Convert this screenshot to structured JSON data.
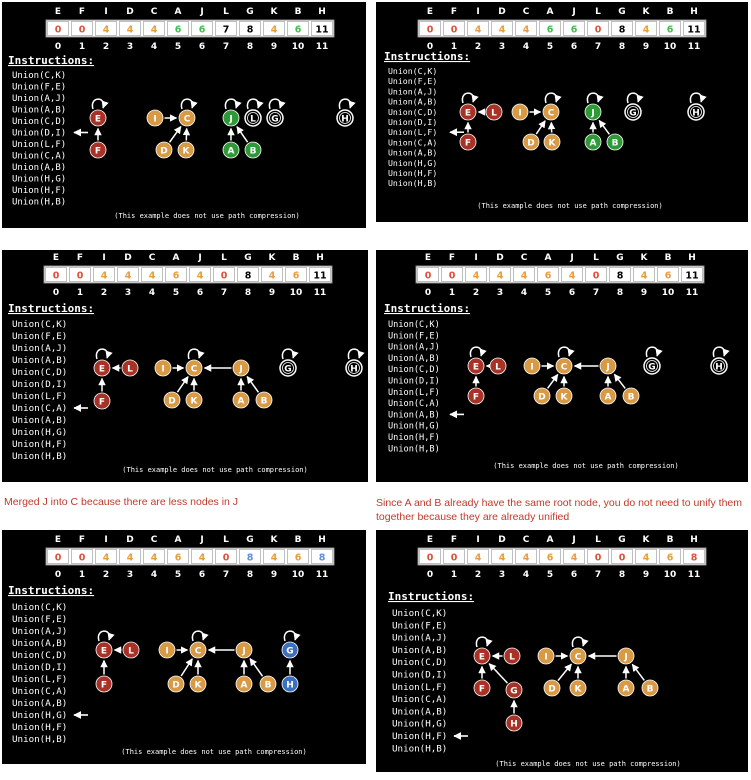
{
  "letters": [
    "E",
    "F",
    "I",
    "D",
    "C",
    "A",
    "J",
    "L",
    "G",
    "K",
    "B",
    "H"
  ],
  "indices": [
    "0",
    "1",
    "2",
    "3",
    "4",
    "5",
    "6",
    "7",
    "8",
    "9",
    "10",
    "11"
  ],
  "instructions_title": "Instructions:",
  "instructions": [
    "Union(C,K)",
    "Union(F,E)",
    "Union(A,J)",
    "Union(A,B)",
    "Union(C,D)",
    "Union(D,I)",
    "Union(L,F)",
    "Union(C,A)",
    "Union(A,B)",
    "Union(H,G)",
    "Union(H,F)",
    "Union(H,B)"
  ],
  "footer_note": "(This example does not use path compression)",
  "colors": {
    "red": "#a83226",
    "orange": "#d99a45",
    "green": "#2e9a37",
    "blue": "#3b6fc0",
    "background": "#000000",
    "text": "#ffffff",
    "val_red": "#e0503c",
    "val_orange": "#e89b3c",
    "val_green": "#3fbf4a",
    "val_blue": "#5b8ee6",
    "val_default": "#000000"
  },
  "panels": [
    {
      "values": [
        "0",
        "0",
        "4",
        "4",
        "4",
        "6",
        "6",
        "7",
        "8",
        "4",
        "6",
        "11"
      ],
      "value_colors": [
        "red",
        "red",
        "orange",
        "orange",
        "orange",
        "green",
        "green",
        "default",
        "default",
        "orange",
        "green",
        "default"
      ],
      "arrow_at": 5,
      "caption": "",
      "nodes": [
        {
          "label": "E",
          "color": "red"
        },
        {
          "label": "F",
          "color": "red"
        },
        {
          "label": "I",
          "color": "orange"
        },
        {
          "label": "C",
          "color": "orange"
        },
        {
          "label": "D",
          "color": "orange"
        },
        {
          "label": "K",
          "color": "orange"
        },
        {
          "label": "J",
          "color": "green"
        },
        {
          "label": "L",
          "color": "none"
        },
        {
          "label": "G",
          "color": "none"
        },
        {
          "label": "A",
          "color": "green"
        },
        {
          "label": "B",
          "color": "green"
        },
        {
          "label": "H",
          "color": "none"
        }
      ]
    },
    {
      "values": [
        "0",
        "0",
        "4",
        "4",
        "4",
        "6",
        "6",
        "0",
        "8",
        "4",
        "6",
        "11"
      ],
      "value_colors": [
        "red",
        "red",
        "orange",
        "orange",
        "orange",
        "green",
        "green",
        "red",
        "default",
        "orange",
        "green",
        "default"
      ],
      "arrow_at": 6,
      "caption": "",
      "nodes": [
        {
          "label": "E",
          "color": "red"
        },
        {
          "label": "L",
          "color": "red"
        },
        {
          "label": "F",
          "color": "red"
        },
        {
          "label": "I",
          "color": "orange"
        },
        {
          "label": "C",
          "color": "orange"
        },
        {
          "label": "D",
          "color": "orange"
        },
        {
          "label": "K",
          "color": "orange"
        },
        {
          "label": "J",
          "color": "green"
        },
        {
          "label": "A",
          "color": "green"
        },
        {
          "label": "B",
          "color": "green"
        },
        {
          "label": "G",
          "color": "none"
        },
        {
          "label": "H",
          "color": "none"
        }
      ]
    },
    {
      "values": [
        "0",
        "0",
        "4",
        "4",
        "4",
        "6",
        "4",
        "0",
        "8",
        "4",
        "6",
        "11"
      ],
      "value_colors": [
        "red",
        "red",
        "orange",
        "orange",
        "orange",
        "orange",
        "orange",
        "red",
        "default",
        "orange",
        "orange",
        "default"
      ],
      "arrow_at": 7,
      "caption": "Merged J into C because there are less nodes in J",
      "nodes": [
        {
          "label": "E",
          "color": "red"
        },
        {
          "label": "L",
          "color": "red"
        },
        {
          "label": "F",
          "color": "red"
        },
        {
          "label": "I",
          "color": "orange"
        },
        {
          "label": "C",
          "color": "orange"
        },
        {
          "label": "D",
          "color": "orange"
        },
        {
          "label": "K",
          "color": "orange"
        },
        {
          "label": "J",
          "color": "orange"
        },
        {
          "label": "A",
          "color": "orange"
        },
        {
          "label": "B",
          "color": "orange"
        },
        {
          "label": "G",
          "color": "none"
        },
        {
          "label": "H",
          "color": "none"
        }
      ]
    },
    {
      "values": [
        "0",
        "0",
        "4",
        "4",
        "4",
        "6",
        "4",
        "0",
        "8",
        "4",
        "6",
        "11"
      ],
      "value_colors": [
        "red",
        "red",
        "orange",
        "orange",
        "orange",
        "orange",
        "orange",
        "red",
        "default",
        "orange",
        "orange",
        "default"
      ],
      "arrow_at": 8,
      "caption": "Since A and B already have the same root node, you do not need to unify them together because they are already unified",
      "nodes": [
        {
          "label": "E",
          "color": "red"
        },
        {
          "label": "L",
          "color": "red"
        },
        {
          "label": "F",
          "color": "red"
        },
        {
          "label": "I",
          "color": "orange"
        },
        {
          "label": "C",
          "color": "orange"
        },
        {
          "label": "D",
          "color": "orange"
        },
        {
          "label": "K",
          "color": "orange"
        },
        {
          "label": "J",
          "color": "orange"
        },
        {
          "label": "A",
          "color": "orange"
        },
        {
          "label": "B",
          "color": "orange"
        },
        {
          "label": "G",
          "color": "none"
        },
        {
          "label": "H",
          "color": "none"
        }
      ]
    },
    {
      "values": [
        "0",
        "0",
        "4",
        "4",
        "4",
        "6",
        "4",
        "0",
        "8",
        "4",
        "6",
        "8"
      ],
      "value_colors": [
        "red",
        "red",
        "orange",
        "orange",
        "orange",
        "orange",
        "orange",
        "red",
        "blue",
        "orange",
        "orange",
        "blue"
      ],
      "arrow_at": 9,
      "caption": "",
      "nodes": [
        {
          "label": "E",
          "color": "red"
        },
        {
          "label": "L",
          "color": "red"
        },
        {
          "label": "F",
          "color": "red"
        },
        {
          "label": "I",
          "color": "orange"
        },
        {
          "label": "C",
          "color": "orange"
        },
        {
          "label": "D",
          "color": "orange"
        },
        {
          "label": "K",
          "color": "orange"
        },
        {
          "label": "J",
          "color": "orange"
        },
        {
          "label": "A",
          "color": "orange"
        },
        {
          "label": "B",
          "color": "orange"
        },
        {
          "label": "G",
          "color": "blue"
        },
        {
          "label": "H",
          "color": "blue"
        }
      ]
    },
    {
      "values": [
        "0",
        "0",
        "4",
        "4",
        "4",
        "6",
        "4",
        "0",
        "0",
        "4",
        "6",
        "8"
      ],
      "value_colors": [
        "red",
        "red",
        "orange",
        "orange",
        "orange",
        "orange",
        "orange",
        "red",
        "red",
        "orange",
        "orange",
        "red"
      ],
      "arrow_at": 10,
      "caption": "",
      "nodes": [
        {
          "label": "E",
          "color": "red"
        },
        {
          "label": "L",
          "color": "red"
        },
        {
          "label": "F",
          "color": "red"
        },
        {
          "label": "G",
          "color": "red"
        },
        {
          "label": "H",
          "color": "red"
        },
        {
          "label": "I",
          "color": "orange"
        },
        {
          "label": "C",
          "color": "orange"
        },
        {
          "label": "D",
          "color": "orange"
        },
        {
          "label": "K",
          "color": "orange"
        },
        {
          "label": "J",
          "color": "orange"
        },
        {
          "label": "A",
          "color": "orange"
        },
        {
          "label": "B",
          "color": "orange"
        }
      ]
    }
  ]
}
